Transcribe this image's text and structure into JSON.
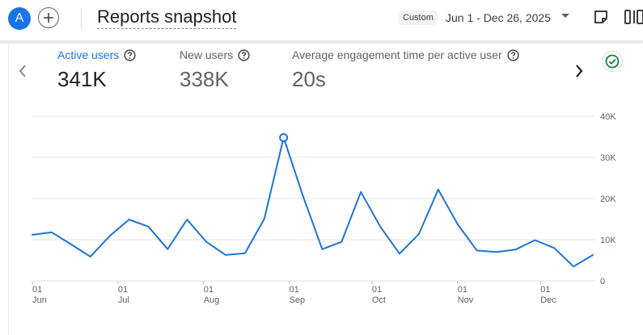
{
  "header": {
    "avatar_initial": "A",
    "title": "Reports snapshot",
    "date_chip": "Custom",
    "date_range": "Jun 1 - Dec 26, 2025"
  },
  "metrics": [
    {
      "label": "Active users",
      "value": "341K"
    },
    {
      "label": "New users",
      "value": "338K"
    },
    {
      "label": "Average engagement time per active user",
      "value": "20s"
    }
  ],
  "colors": {
    "accent": "#1a73e8",
    "line": "#1f74d1",
    "grid": "#e0e0e0",
    "success": "#188038"
  },
  "chart_data": {
    "type": "line",
    "title": "",
    "xlabel": "",
    "ylabel": "",
    "ylim": [
      0,
      40000
    ],
    "y_ticks": [
      0,
      10000,
      20000,
      30000,
      40000
    ],
    "y_tick_labels": [
      "0",
      "10K",
      "20K",
      "30K",
      "40K"
    ],
    "x_tick_labels": [
      {
        "day": "01",
        "month": "Jun",
        "week": 0
      },
      {
        "day": "01",
        "month": "Jul",
        "week": 4.43
      },
      {
        "day": "01",
        "month": "Aug",
        "week": 8.86
      },
      {
        "day": "01",
        "month": "Sep",
        "week": 13.29
      },
      {
        "day": "01",
        "month": "Oct",
        "week": 17.57
      },
      {
        "day": "01",
        "month": "Nov",
        "week": 22
      },
      {
        "day": "01",
        "month": "Dec",
        "week": 26.29
      }
    ],
    "series": [
      {
        "name": "Active users",
        "x": [
          0,
          1,
          2,
          3,
          4,
          5,
          6,
          7,
          8,
          9,
          10,
          11,
          12,
          13,
          14,
          15,
          16,
          17,
          18,
          19,
          20,
          21,
          22,
          23,
          24,
          25,
          26,
          27,
          28,
          29
        ],
        "values": [
          11200,
          11800,
          8900,
          5900,
          10900,
          14900,
          13200,
          7700,
          14900,
          9500,
          6300,
          6700,
          15100,
          34800,
          20600,
          7700,
          9500,
          21600,
          13200,
          6600,
          11400,
          22200,
          13800,
          7400,
          7000,
          7600,
          9900,
          8000,
          3500,
          6300
        ],
        "highlight_index": 13
      }
    ]
  }
}
